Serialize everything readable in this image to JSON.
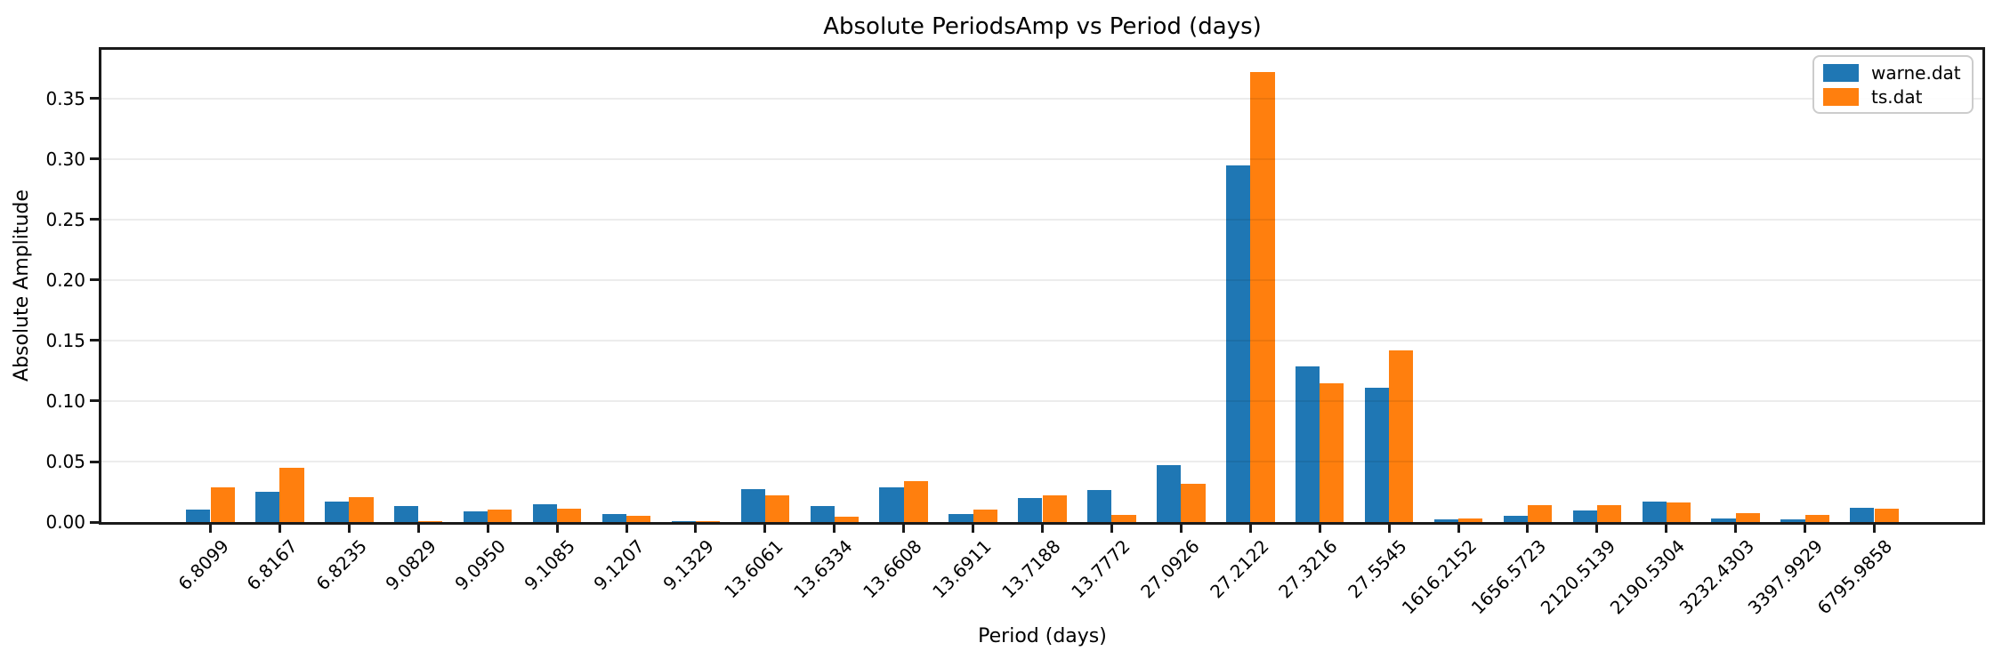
{
  "chart_data": {
    "type": "bar",
    "title": "Absolute PeriodsAmp vs Period (days)",
    "xlabel": "Period (days)",
    "ylabel": "Absolute Amplitude",
    "categories": [
      "6.8099",
      "6.8167",
      "6.8235",
      "9.0829",
      "9.0950",
      "9.1085",
      "9.1207",
      "9.1329",
      "13.6061",
      "13.6334",
      "13.6608",
      "13.6911",
      "13.7188",
      "13.7772",
      "27.0926",
      "27.2122",
      "27.3216",
      "27.5545",
      "1616.2152",
      "1656.5723",
      "2120.5139",
      "2190.5304",
      "3232.4303",
      "3397.9929",
      "6795.9858"
    ],
    "series": [
      {
        "name": "warne.dat",
        "color": "#1f77b4",
        "values": [
          0.0105,
          0.0248,
          0.0172,
          0.0132,
          0.0088,
          0.015,
          0.0066,
          0.0003,
          0.0275,
          0.0135,
          0.029,
          0.0063,
          0.0202,
          0.0268,
          0.0468,
          0.295,
          0.129,
          0.1113,
          0.0021,
          0.0053,
          0.0095,
          0.0166,
          0.0028,
          0.0021,
          0.0117
        ]
      },
      {
        "name": "ts.dat",
        "color": "#ff7f0e",
        "values": [
          0.0287,
          0.0452,
          0.0207,
          0.0004,
          0.0105,
          0.0108,
          0.0055,
          0.0009,
          0.0218,
          0.0042,
          0.034,
          0.01,
          0.0224,
          0.0057,
          0.032,
          0.372,
          0.115,
          0.142,
          0.0033,
          0.0142,
          0.014,
          0.0162,
          0.0071,
          0.006,
          0.0112
        ]
      }
    ],
    "ylim": [
      0,
      0.391
    ],
    "yticks": [
      0.0,
      0.05,
      0.1,
      0.15,
      0.2,
      0.25,
      0.3,
      0.35
    ],
    "ytick_format_decimals": 2,
    "bar_width": 0.35,
    "grid": true,
    "legend_position": "upper right",
    "xtick_rotation_deg": 45
  }
}
